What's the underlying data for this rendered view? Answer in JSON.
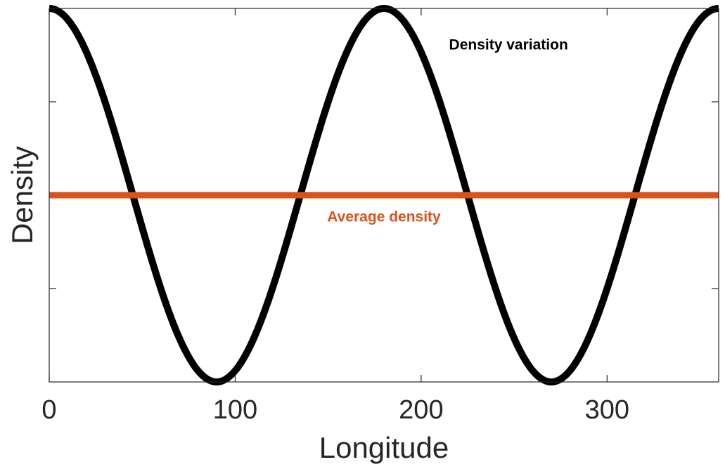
{
  "chart_data": {
    "type": "line",
    "xlabel": "Longitude",
    "ylabel": "Density",
    "xlim": [
      0,
      360
    ],
    "ylim": [
      -1,
      1
    ],
    "x_ticks": [
      0,
      100,
      200,
      300
    ],
    "x_tick_labels": [
      "0",
      "100",
      "200",
      "300"
    ],
    "y_ticks": [
      -0.5,
      0,
      0.5
    ],
    "y_tick_labels": [],
    "grid": false,
    "series": [
      {
        "name": "Density variation",
        "color": "#000000",
        "function": "cos(2*x)",
        "x": [
          0,
          15,
          30,
          45,
          60,
          75,
          90,
          105,
          120,
          135,
          150,
          165,
          180,
          195,
          210,
          225,
          240,
          255,
          270,
          285,
          300,
          315,
          330,
          345,
          360
        ],
        "values": [
          1,
          0.866,
          0.5,
          0,
          -0.5,
          -0.866,
          -1,
          -0.866,
          -0.5,
          0,
          0.5,
          0.866,
          1,
          0.866,
          0.5,
          0,
          -0.5,
          -0.866,
          -1,
          -0.866,
          -0.5,
          0,
          0.5,
          0.866,
          1
        ]
      },
      {
        "name": "Average density",
        "color": "#D95319",
        "x": [
          0,
          360
        ],
        "values": [
          0,
          0
        ]
      }
    ],
    "annotations": [
      {
        "text": "Density variation",
        "color": "#000000",
        "x": 215,
        "y": 0.8
      },
      {
        "text": "Average density",
        "color": "#D95319",
        "x": 180,
        "y": -0.12
      }
    ]
  }
}
